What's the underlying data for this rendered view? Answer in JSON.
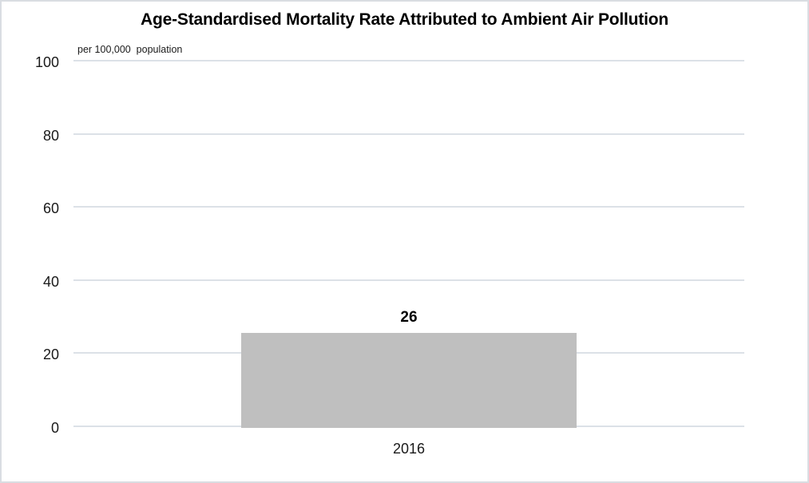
{
  "chart": {
    "title": "Age-Standardised Mortality Rate Attributed to Ambient Air Pollution",
    "units_note": "per 100,000  population"
  },
  "chart_data": {
    "type": "bar",
    "title": "Age-Standardised Mortality Rate Attributed to Ambient Air Pollution",
    "subtitle": "per 100,000 population",
    "categories": [
      "2016"
    ],
    "values": [
      26
    ],
    "data_labels": [
      "26"
    ],
    "xlabel": "",
    "ylabel": "per 100,000 population",
    "ylim": [
      0,
      100
    ],
    "yticks": [
      0,
      20,
      40,
      60,
      80,
      100
    ],
    "grid": "horizontal",
    "legend": "none",
    "colors": {
      "bar_fill": "#bfbfbf",
      "gridline": "#dce1e7",
      "text": "#1a1a1a",
      "title_text": "#000000",
      "canvas_border": "#d9dde2",
      "background": "#ffffff"
    },
    "layout": {
      "bar_width_fraction": 0.5
    }
  }
}
